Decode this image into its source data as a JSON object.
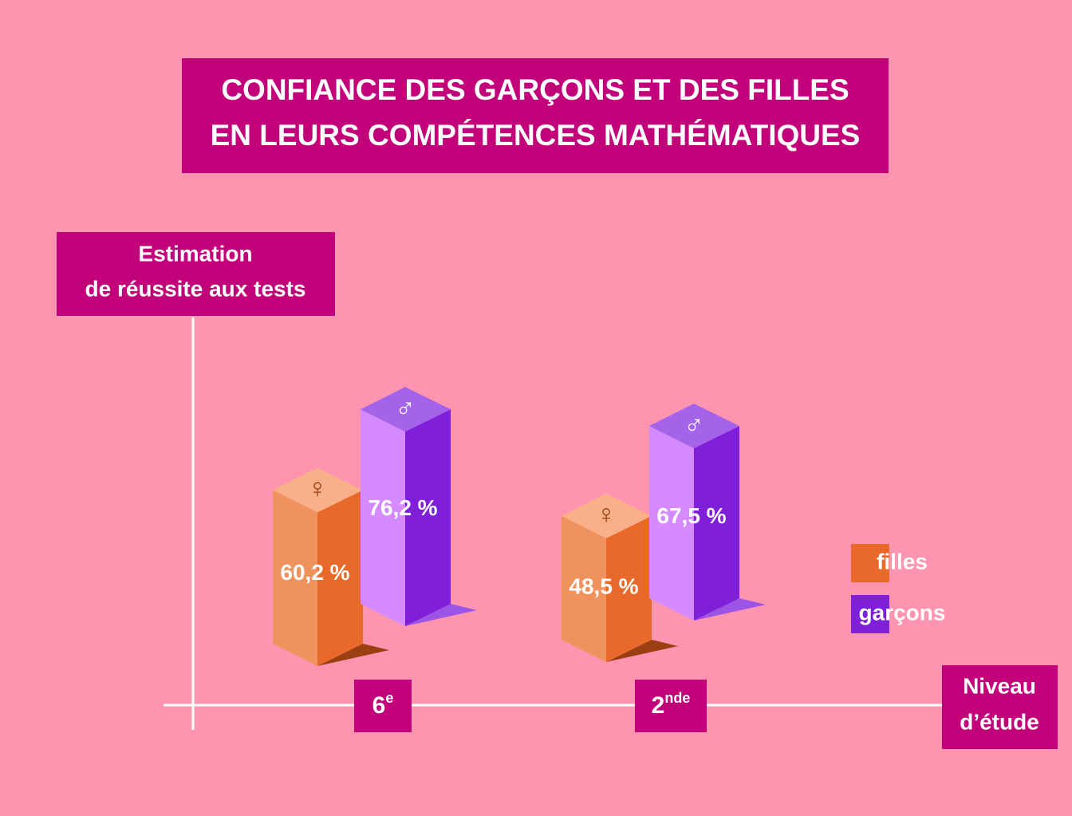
{
  "chart_data": {
    "type": "bar3d",
    "title": [
      "CONFIANCE DES GARÇONS ET DES FILLES",
      "EN LEURS COMPÉTENCES MATHÉMATIQUES"
    ],
    "y_label": [
      "Estimation",
      "de réussite aux tests"
    ],
    "x_label": [
      "Niveau",
      "d’étude"
    ],
    "categories": [
      "6e",
      "2nde"
    ],
    "ylim": [
      0,
      100
    ],
    "series": [
      {
        "name": "filles",
        "symbol": "♀",
        "color": "#e8692a",
        "front": "#f0925e",
        "top": "#f9b089",
        "shadow": "#9a3f12",
        "symbol_color": "#9a3f12",
        "values": [
          60.2,
          48.5
        ],
        "value_labels": [
          "60,2 %",
          "48,5 %"
        ]
      },
      {
        "name": "garçons",
        "symbol": "♂",
        "color": "#7f1fd9",
        "front": "#d58bff",
        "top": "#a463e8",
        "shadow": "#9c54e6",
        "symbol_color": "#ffffff",
        "values": [
          76.2,
          67.5
        ],
        "value_labels": [
          "76,2 %",
          "67,5 %"
        ]
      }
    ]
  }
}
